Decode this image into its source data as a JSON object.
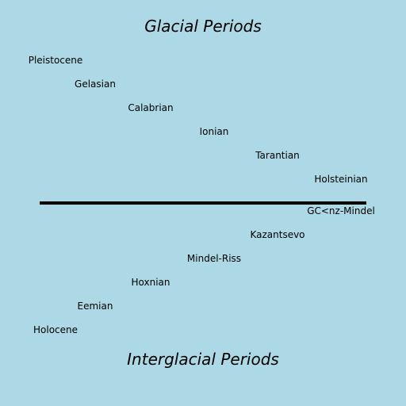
{
  "diagram": {
    "top_title": "Glacial Periods",
    "bottom_title": "Interglacial Periods",
    "glacial_labels": [
      "Pleistocene",
      "Gelasian",
      "Calabrian",
      "Ionian",
      "Tarantian",
      "Holsteinian"
    ],
    "interglacial_labels": [
      "GC<nz-Mindel",
      "Kazantsevo",
      "Mindel-Riss",
      "Hoxnian",
      "Eemian",
      "Holocene"
    ]
  },
  "colors": {
    "background": "#add8e6",
    "divider": "#000000",
    "text": "#000000"
  }
}
